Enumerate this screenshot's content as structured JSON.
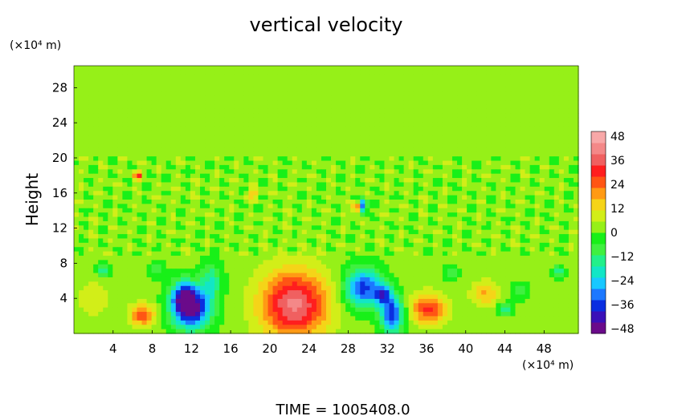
{
  "chart_data": {
    "type": "heatmap",
    "title": "vertical velocity",
    "xlabel": "",
    "ylabel": "Height",
    "x_unit": "(×10⁴ m)",
    "y_unit": "(×10⁴ m)",
    "xlim": [
      0,
      51.5
    ],
    "ylim": [
      0,
      30.5
    ],
    "x_ticks": [
      4,
      8,
      12,
      16,
      20,
      24,
      28,
      32,
      36,
      40,
      44,
      48
    ],
    "y_ticks": [
      4,
      8,
      12,
      16,
      20,
      24,
      28
    ],
    "colorbar": {
      "ticks": [
        48,
        36,
        24,
        12,
        0,
        -12,
        -24,
        -36,
        -48
      ],
      "range": [
        -52,
        52
      ],
      "colors": [
        "#6a0a8a",
        "#3a10b8",
        "#0a2ee0",
        "#1c78ff",
        "#18c8ff",
        "#12e6c6",
        "#22f08a",
        "#40f040",
        "#18f018",
        "#96f018",
        "#d2ee18",
        "#f5d418",
        "#ff9a14",
        "#ff5514",
        "#ff1e1e",
        "#f06060",
        "#f48888",
        "#f8a8a8"
      ]
    },
    "background_value": 2,
    "features": [
      {
        "x": 22.5,
        "y": 3.3,
        "sx": 2.4,
        "sy": 2.7,
        "amplitude": 40
      },
      {
        "x": 7.0,
        "y": 2.1,
        "sx": 0.9,
        "sy": 0.9,
        "amplitude": 26
      },
      {
        "x": 36.2,
        "y": 2.8,
        "sx": 1.3,
        "sy": 1.2,
        "amplitude": 28
      },
      {
        "x": 42.0,
        "y": 4.5,
        "sx": 1.0,
        "sy": 1.0,
        "amplitude": 16
      },
      {
        "x": 12.0,
        "y": 2.8,
        "sx": 1.4,
        "sy": 1.6,
        "amplitude": -50
      },
      {
        "x": 11.2,
        "y": 4.3,
        "sx": 0.9,
        "sy": 1.3,
        "amplitude": -30
      },
      {
        "x": 14.0,
        "y": 6.0,
        "sx": 0.8,
        "sy": 1.5,
        "amplitude": -18
      },
      {
        "x": 29.5,
        "y": 5.2,
        "sx": 1.3,
        "sy": 1.6,
        "amplitude": -40
      },
      {
        "x": 32.5,
        "y": 2.2,
        "sx": 0.8,
        "sy": 1.5,
        "amplitude": -42
      },
      {
        "x": 31.5,
        "y": 4.5,
        "sx": 0.6,
        "sy": 0.8,
        "amplitude": -30
      },
      {
        "x": 29.5,
        "y": 14.5,
        "sx": 0.3,
        "sy": 0.6,
        "amplitude": -38
      },
      {
        "x": 28.8,
        "y": 14.3,
        "sx": 0.25,
        "sy": 0.5,
        "amplitude": 32
      },
      {
        "x": 6.5,
        "y": 18.0,
        "sx": 0.3,
        "sy": 0.4,
        "amplitude": 30
      },
      {
        "x": 18.3,
        "y": 15.9,
        "sx": 0.4,
        "sy": 0.4,
        "amplitude": 16
      },
      {
        "x": 3.0,
        "y": 7.2,
        "sx": 0.5,
        "sy": 0.6,
        "amplitude": -18
      },
      {
        "x": 44.0,
        "y": 2.8,
        "sx": 0.5,
        "sy": 0.5,
        "amplitude": -20
      },
      {
        "x": 49.5,
        "y": 7.0,
        "sx": 0.4,
        "sy": 0.5,
        "amplitude": -20
      },
      {
        "x": 45.5,
        "y": 4.8,
        "sx": 0.6,
        "sy": 0.6,
        "amplitude": -14
      },
      {
        "x": 38.5,
        "y": 6.8,
        "sx": 0.5,
        "sy": 0.6,
        "amplitude": -12
      },
      {
        "x": 8.5,
        "y": 7.2,
        "sx": 0.6,
        "sy": 0.6,
        "amplitude": -12
      },
      {
        "x": 2.0,
        "y": 4.0,
        "sx": 1.2,
        "sy": 1.5,
        "amplitude": 8
      }
    ],
    "bands": [
      {
        "y_min": 9,
        "y_max": 20,
        "amplitude": 6
      }
    ]
  },
  "footer": {
    "time_label": "TIME  =  1005408.0"
  }
}
